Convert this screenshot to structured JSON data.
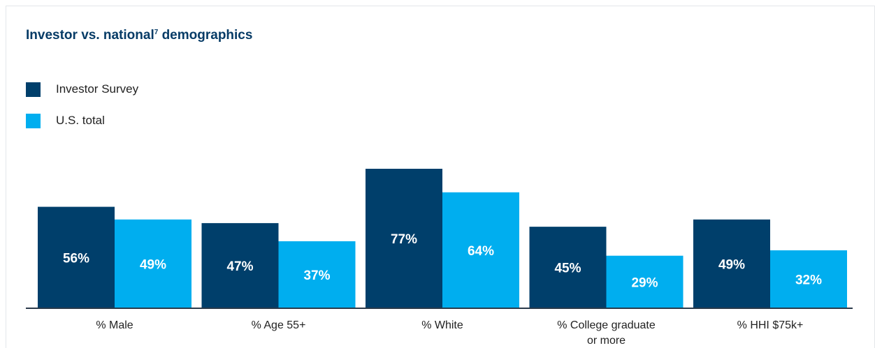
{
  "chart_data": {
    "type": "bar",
    "title": "Investor vs. national",
    "title_superscript": "7",
    "title_suffix": "demographics",
    "categories": [
      "% Male",
      "% Age 55+",
      "% White",
      "% College graduate or more",
      "% HHI $75k+"
    ],
    "category_lines": [
      [
        "% Male"
      ],
      [
        "% Age 55+"
      ],
      [
        "% White"
      ],
      [
        "% College graduate",
        "or more"
      ],
      [
        "% HHI $75k+"
      ]
    ],
    "series": [
      {
        "name": "Investor Survey",
        "values": [
          56,
          47,
          77,
          45,
          49
        ],
        "labels": [
          "56%",
          "47%",
          "77%",
          "45%",
          "49%"
        ],
        "color": "#003f6b"
      },
      {
        "name": "U.S. total",
        "values": [
          49,
          37,
          64,
          29,
          32
        ],
        "labels": [
          "49%",
          "37%",
          "64%",
          "29%",
          "32%"
        ],
        "color": "#00aeef"
      }
    ],
    "ylim": [
      0,
      100
    ],
    "grid": false,
    "legend_position": "top-left",
    "value_label_color": "#ffffff",
    "axis_color": "#2b3a4a"
  }
}
